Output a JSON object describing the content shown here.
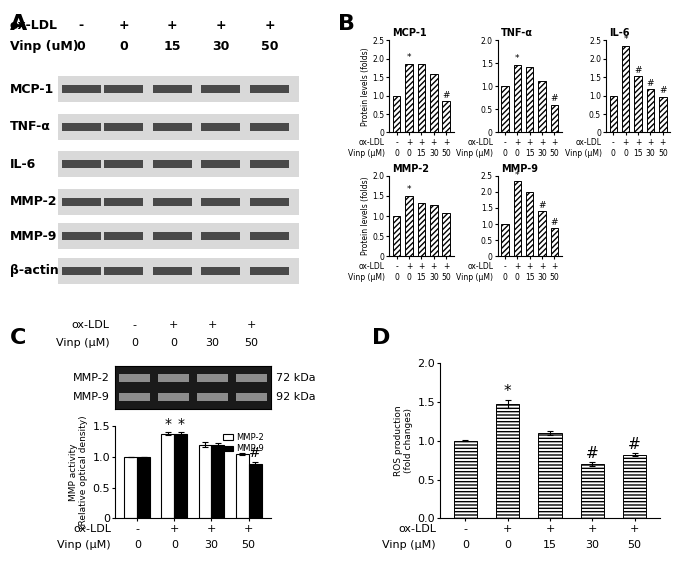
{
  "blot_A": {
    "panel": "A",
    "header": [
      {
        "name": "ox-LDL",
        "labels": [
          "-",
          "+",
          "+",
          "+",
          "+"
        ]
      },
      {
        "name": "Vinp (uM)",
        "labels": [
          "0",
          "0",
          "15",
          "30",
          "50"
        ]
      }
    ],
    "rows": [
      "MCP-1",
      "TNF-α",
      "IL-6",
      "MMP-2",
      "MMP-9",
      "β-actin"
    ]
  },
  "zymogram_C": {
    "panel": "C",
    "header": [
      {
        "name": "ox-LDL",
        "labels": [
          "-",
          "+",
          "+",
          "+"
        ]
      },
      {
        "name": "Vinp (μM)",
        "labels": [
          "0",
          "0",
          "30",
          "50"
        ]
      }
    ],
    "bands": [
      {
        "name": "MMP-2",
        "size": "72 kDa"
      },
      {
        "name": "MMP-9",
        "size": "92 kDa"
      }
    ]
  },
  "chart_data": [
    {
      "type": "bar",
      "panel": "B",
      "title": "MCP-1",
      "ylabel": "Protein levels (folds)",
      "color": "#ffffff",
      "x_rows": [
        {
          "name": "ox-LDL",
          "labels": [
            "-",
            "+",
            "+",
            "+",
            "+"
          ]
        },
        {
          "name": "Vinp (μM)",
          "labels": [
            "0",
            "0",
            "15",
            "30",
            "50"
          ]
        }
      ],
      "values": [
        1.0,
        1.87,
        1.85,
        1.58,
        0.85
      ],
      "significance": [
        null,
        "*",
        null,
        null,
        "#"
      ],
      "ylim": [
        0,
        2.5
      ],
      "yticks": [
        0,
        {
          "value": 0.5,
          "label": "0.5"
        },
        {
          "value": 1.0,
          "label": "1.0"
        },
        {
          "value": 1.5,
          "label": "1.5"
        },
        {
          "value": 2.0,
          "label": "2.0"
        },
        {
          "value": 2.5,
          "label": "2.5"
        }
      ]
    },
    {
      "type": "bar",
      "title": "TNF-α",
      "color": "#ffffff",
      "x_rows": [
        {
          "name": "ox-LDL",
          "labels": [
            "-",
            "+",
            "+",
            "+",
            "+"
          ]
        },
        {
          "name": "Vinp (μM)",
          "labels": [
            "0",
            "0",
            "15",
            "30",
            "50"
          ]
        }
      ],
      "values": [
        1.0,
        1.47,
        1.42,
        1.12,
        0.6
      ],
      "significance": [
        null,
        "*",
        null,
        null,
        "#"
      ],
      "ylim": [
        0,
        2.0
      ],
      "yticks": [
        0,
        {
          "value": 0.5,
          "label": "0.5"
        },
        {
          "value": 1.0,
          "label": "1.0"
        },
        {
          "value": 1.5,
          "label": "1.5"
        },
        {
          "value": 2.0,
          "label": "2.0"
        }
      ]
    },
    {
      "type": "bar",
      "title": "IL-6",
      "color": "#ffffff",
      "x_rows": [
        {
          "name": "ox-LDL",
          "labels": [
            "-",
            "+",
            "+",
            "+",
            "+"
          ]
        },
        {
          "name": "Vinp (μM)",
          "labels": [
            "0",
            "0",
            "15",
            "30",
            "50"
          ]
        }
      ],
      "values": [
        1.0,
        2.35,
        1.52,
        1.17,
        0.97
      ],
      "significance": [
        null,
        "*",
        "#",
        "#",
        "#"
      ],
      "ylim": [
        0,
        2.5
      ],
      "yticks": [
        0,
        {
          "value": 0.5,
          "label": "0.5"
        },
        {
          "value": 1.0,
          "label": "1.0"
        },
        {
          "value": 1.5,
          "label": "1.5"
        },
        {
          "value": 2.0,
          "label": "2.0"
        },
        {
          "value": 2.5,
          "label": "2.5"
        }
      ]
    },
    {
      "type": "bar",
      "title": "MMP-2",
      "ylabel": "Protein levels (folds)",
      "color": "#ffffff",
      "x_rows": [
        {
          "name": "ox-LDL",
          "labels": [
            "-",
            "+",
            "+",
            "+",
            "+"
          ]
        },
        {
          "name": "Vinp (μM)",
          "labels": [
            "0",
            "0",
            "15",
            "30",
            "50"
          ]
        }
      ],
      "values": [
        1.0,
        1.5,
        1.33,
        1.28,
        1.08
      ],
      "significance": [
        null,
        "*",
        null,
        null,
        null
      ],
      "ylim": [
        0,
        2.0
      ],
      "yticks": [
        0,
        {
          "value": 0.5,
          "label": "0.5"
        },
        {
          "value": 1.0,
          "label": "1.0"
        },
        {
          "value": 1.5,
          "label": "1.5"
        },
        {
          "value": 2.0,
          "label": "2.0"
        }
      ]
    },
    {
      "type": "bar",
      "title": "MMP-9",
      "color": "#ffffff",
      "x_rows": [
        {
          "name": "ox-LDL",
          "labels": [
            "-",
            "+",
            "+",
            "+",
            "+"
          ]
        },
        {
          "name": "Vinp (μM)",
          "labels": [
            "0",
            "0",
            "15",
            "30",
            "50"
          ]
        }
      ],
      "values": [
        1.0,
        2.33,
        1.98,
        1.4,
        0.87
      ],
      "significance": [
        null,
        "*",
        null,
        "#",
        "#"
      ],
      "ylim": [
        0,
        2.5
      ],
      "yticks": [
        0,
        {
          "value": 0.5,
          "label": "0.5"
        },
        {
          "value": 1.0,
          "label": "1.0"
        },
        {
          "value": 1.5,
          "label": "1.5"
        },
        {
          "value": 2.0,
          "label": "2.0"
        },
        {
          "value": 2.5,
          "label": "2.5"
        }
      ]
    },
    {
      "type": "bar",
      "ylabel": "MMP activity\n(Relative optical density)",
      "legend": "upper right",
      "x_rows": [
        {
          "name": "ox-LDL",
          "labels": [
            "-",
            "+",
            "+",
            "+"
          ]
        },
        {
          "name": "Vinp (μM)",
          "labels": [
            "0",
            "0",
            "30",
            "50"
          ]
        }
      ],
      "series": [
        {
          "name": "MMP-2",
          "color": "#ffffff",
          "values": [
            1.0,
            1.38,
            1.2,
            1.05
          ],
          "errors": [
            0,
            0.02,
            0.04,
            0.02
          ],
          "significance": [
            null,
            "*",
            null,
            null
          ]
        },
        {
          "name": "MMP-9",
          "color": "#000000",
          "values": [
            1.0,
            1.37,
            1.2,
            0.88
          ],
          "errors": [
            0,
            0.03,
            0.02,
            0.04
          ],
          "significance": [
            null,
            "*",
            null,
            "#"
          ]
        }
      ],
      "ylim": [
        0,
        1.5
      ],
      "yticks": [
        0,
        {
          "value": 0.5,
          "label": "0.5"
        },
        {
          "value": 1.0,
          "label": "1.0"
        },
        {
          "value": 1.5,
          "label": "1.5"
        }
      ]
    },
    {
      "type": "bar",
      "panel": "D",
      "ylabel": "ROS production\n(fold changes)",
      "color": "#ffffff",
      "x_rows": [
        {
          "name": "ox-LDL",
          "labels": [
            "-",
            "+",
            "+",
            "+",
            "+"
          ]
        },
        {
          "name": "Vinp (μM)",
          "labels": [
            "0",
            "0",
            "15",
            "30",
            "50"
          ]
        }
      ],
      "values": [
        1.0,
        1.47,
        1.1,
        0.7,
        0.82
      ],
      "errors": [
        0.01,
        0.05,
        0.03,
        0.02,
        0.02
      ],
      "significance": [
        null,
        "*",
        null,
        "#",
        "#"
      ],
      "ylim": [
        0,
        2.0
      ],
      "yticks": [
        {
          "value": 0.0,
          "label": "0.0"
        },
        {
          "value": 0.5,
          "label": "0.5"
        },
        {
          "value": 1.0,
          "label": "1.0"
        },
        {
          "value": 1.5,
          "label": "1.5"
        },
        {
          "value": 2.0,
          "label": "2.0"
        }
      ]
    }
  ]
}
